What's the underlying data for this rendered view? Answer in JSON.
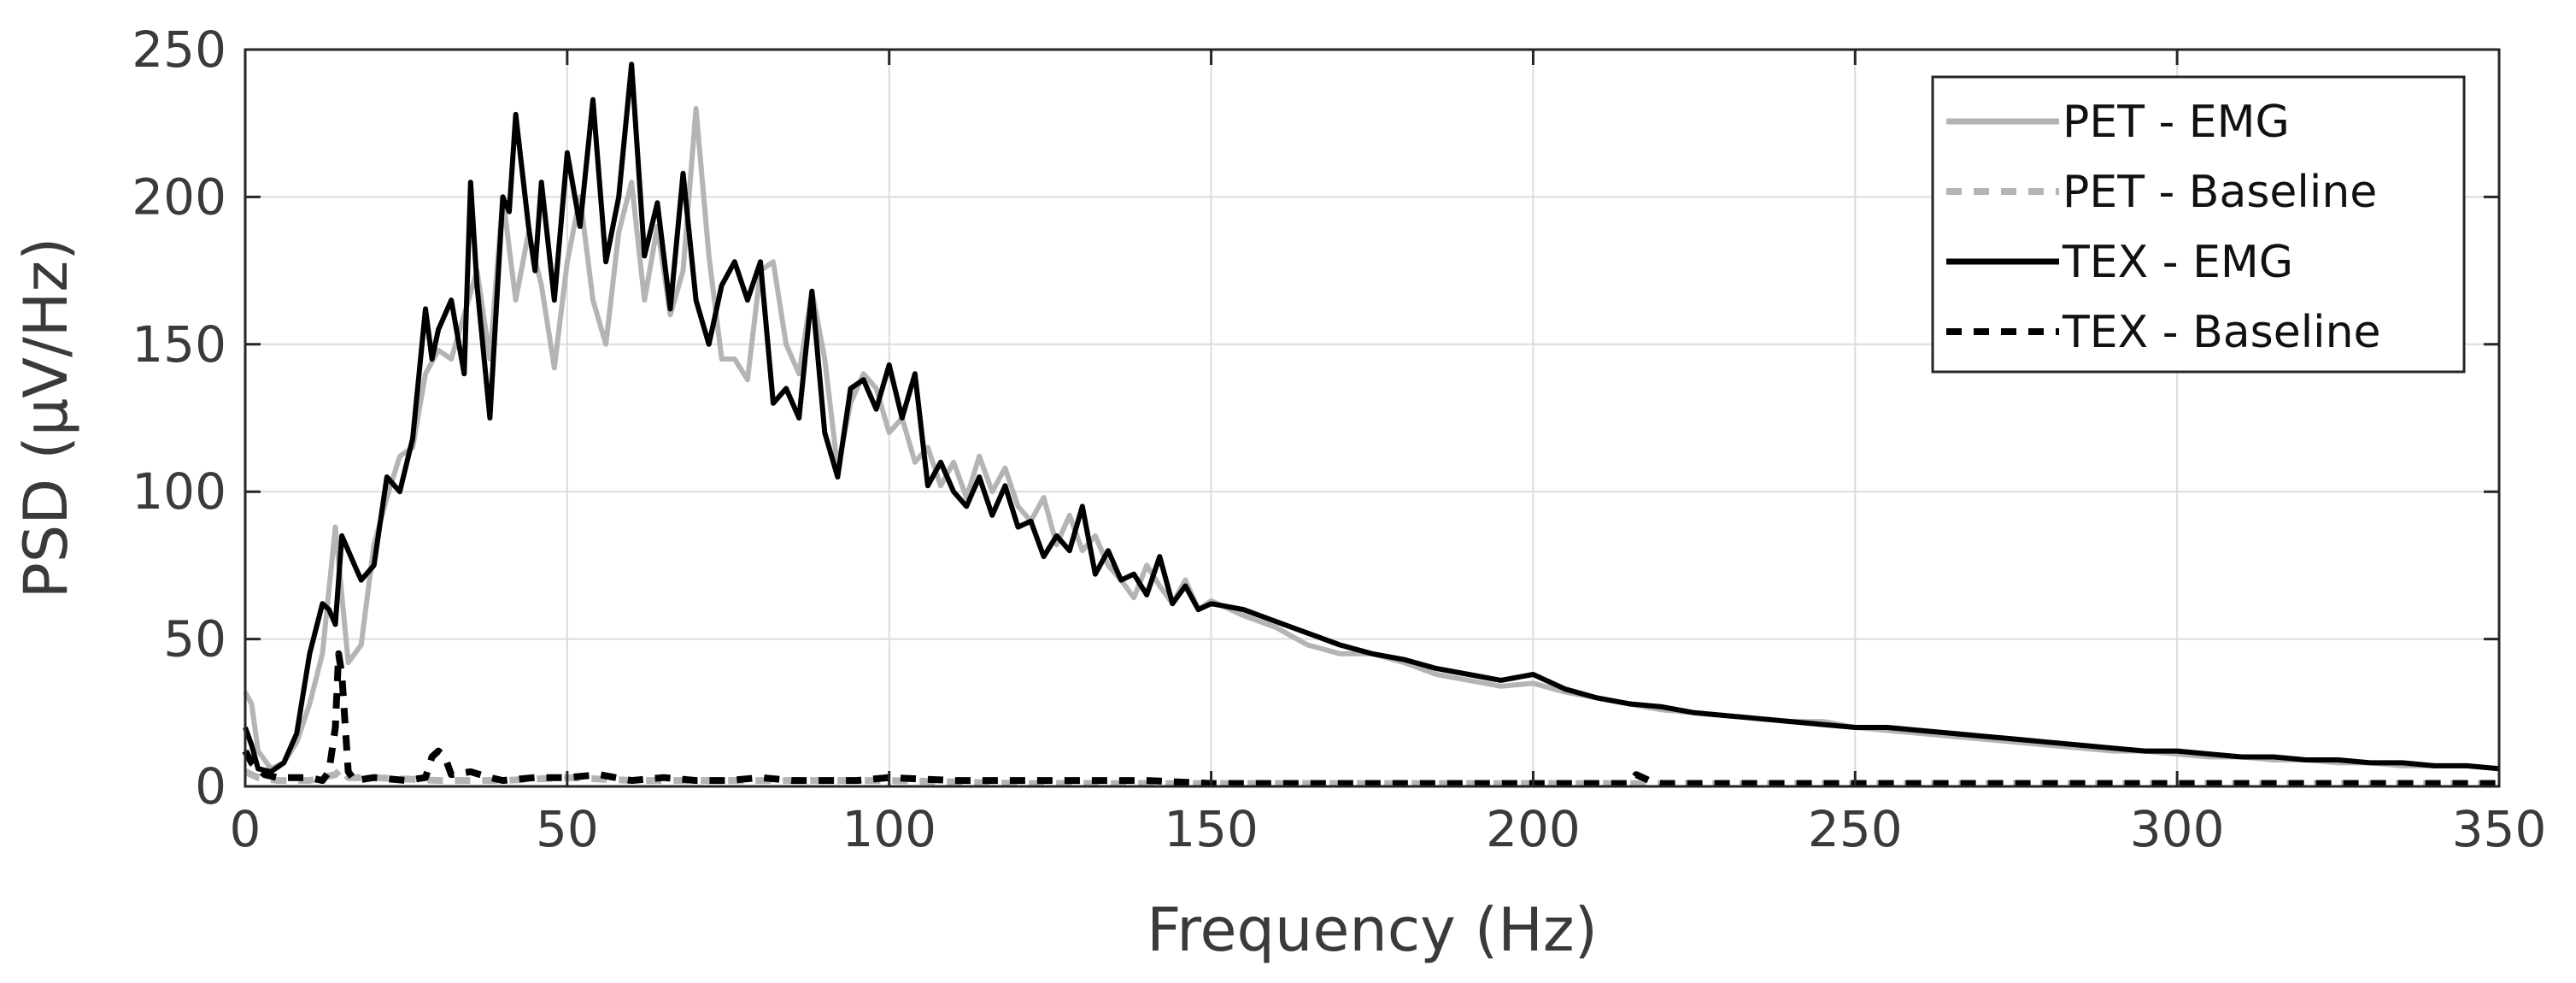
{
  "chart_data": {
    "type": "line",
    "title": "",
    "xlabel": "Frequency (Hz)",
    "ylabel": "PSD (µV/Hz)",
    "xlim": [
      0,
      350
    ],
    "ylim": [
      0,
      250
    ],
    "xticks": [
      0,
      50,
      100,
      150,
      200,
      250,
      300,
      350
    ],
    "yticks": [
      0,
      50,
      100,
      150,
      200,
      250
    ],
    "grid": true,
    "legend_position": "top-right",
    "series": [
      {
        "name": "PET - EMG",
        "color": "#b4b4b4",
        "dash": "solid",
        "x": [
          0,
          1,
          2,
          4,
          6,
          8,
          10,
          12,
          14,
          16,
          18,
          20,
          22,
          24,
          26,
          28,
          30,
          32,
          34,
          36,
          38,
          40,
          42,
          44,
          46,
          48,
          50,
          52,
          54,
          56,
          58,
          60,
          62,
          64,
          66,
          68,
          70,
          72,
          74,
          76,
          78,
          80,
          82,
          84,
          86,
          88,
          90,
          92,
          94,
          96,
          98,
          100,
          102,
          104,
          106,
          108,
          110,
          112,
          114,
          116,
          118,
          120,
          122,
          124,
          126,
          128,
          130,
          132,
          134,
          136,
          138,
          140,
          142,
          144,
          146,
          148,
          150,
          155,
          160,
          165,
          170,
          175,
          180,
          185,
          190,
          195,
          200,
          205,
          210,
          215,
          220,
          225,
          230,
          235,
          240,
          245,
          250,
          255,
          260,
          265,
          270,
          275,
          280,
          285,
          290,
          295,
          300,
          305,
          310,
          315,
          320,
          325,
          330,
          335,
          340,
          345,
          350
        ],
        "y": [
          32,
          28,
          12,
          6,
          8,
          15,
          28,
          45,
          88,
          42,
          48,
          82,
          98,
          112,
          115,
          140,
          148,
          145,
          160,
          175,
          145,
          200,
          165,
          188,
          170,
          142,
          178,
          200,
          165,
          150,
          188,
          205,
          165,
          190,
          160,
          175,
          230,
          180,
          145,
          145,
          138,
          175,
          178,
          150,
          140,
          168,
          145,
          108,
          130,
          140,
          135,
          120,
          125,
          110,
          115,
          102,
          110,
          98,
          112,
          100,
          108,
          95,
          90,
          98,
          82,
          92,
          80,
          85,
          75,
          70,
          64,
          75,
          68,
          62,
          70,
          60,
          63,
          58,
          54,
          48,
          45,
          45,
          42,
          38,
          36,
          34,
          35,
          32,
          30,
          28,
          26,
          25,
          24,
          23,
          22,
          22,
          20,
          19,
          18,
          17,
          16,
          15,
          14,
          13,
          12,
          12,
          11,
          10,
          10,
          9,
          9,
          8,
          8,
          7,
          7,
          7,
          6
        ]
      },
      {
        "name": "PET - Baseline",
        "color": "#b4b4b4",
        "dash": "dashed",
        "x": [
          0,
          2,
          5,
          10,
          14,
          15,
          16,
          20,
          30,
          40,
          50,
          60,
          70,
          80,
          90,
          100,
          120,
          140,
          160,
          180,
          200,
          250,
          300,
          350
        ],
        "y": [
          5,
          3,
          2,
          2,
          4,
          6,
          3,
          3,
          2,
          2,
          3,
          2,
          2,
          2,
          2,
          2,
          1,
          1,
          1,
          1,
          1,
          1,
          1,
          1
        ]
      },
      {
        "name": "TEX - EMG",
        "color": "#000000",
        "dash": "solid",
        "x": [
          0,
          1,
          2,
          4,
          6,
          8,
          10,
          12,
          13,
          14,
          15,
          17,
          18,
          20,
          22,
          24,
          26,
          28,
          29,
          30,
          32,
          34,
          35,
          36,
          38,
          40,
          41,
          42,
          44,
          45,
          46,
          48,
          50,
          52,
          54,
          56,
          58,
          60,
          62,
          64,
          66,
          68,
          70,
          72,
          74,
          76,
          78,
          80,
          82,
          84,
          86,
          88,
          90,
          92,
          94,
          96,
          98,
          100,
          102,
          104,
          106,
          108,
          110,
          112,
          114,
          116,
          118,
          120,
          122,
          124,
          126,
          128,
          130,
          132,
          134,
          136,
          138,
          140,
          142,
          144,
          146,
          148,
          150,
          155,
          160,
          165,
          170,
          175,
          180,
          185,
          190,
          195,
          200,
          205,
          210,
          215,
          220,
          225,
          230,
          235,
          240,
          245,
          250,
          255,
          260,
          265,
          270,
          275,
          280,
          285,
          290,
          295,
          300,
          305,
          310,
          315,
          320,
          325,
          330,
          335,
          340,
          345,
          350
        ],
        "y": [
          20,
          14,
          6,
          5,
          8,
          18,
          45,
          62,
          60,
          55,
          85,
          75,
          70,
          75,
          105,
          100,
          118,
          162,
          145,
          155,
          165,
          140,
          205,
          170,
          125,
          200,
          195,
          228,
          190,
          175,
          205,
          165,
          215,
          190,
          233,
          178,
          200,
          245,
          180,
          198,
          162,
          208,
          165,
          150,
          170,
          178,
          165,
          178,
          130,
          135,
          125,
          168,
          120,
          105,
          135,
          138,
          128,
          143,
          125,
          140,
          102,
          110,
          100,
          95,
          105,
          92,
          102,
          88,
          90,
          78,
          85,
          80,
          95,
          72,
          80,
          70,
          72,
          65,
          78,
          62,
          68,
          60,
          62,
          60,
          56,
          52,
          48,
          45,
          43,
          40,
          38,
          36,
          38,
          33,
          30,
          28,
          27,
          25,
          24,
          23,
          22,
          21,
          20,
          20,
          19,
          18,
          17,
          16,
          15,
          14,
          13,
          12,
          12,
          11,
          10,
          10,
          9,
          9,
          8,
          8,
          7,
          7,
          6
        ]
      },
      {
        "name": "TEX - Baseline",
        "color": "#000000",
        "dash": "dashed",
        "x": [
          0,
          1,
          3,
          5,
          8,
          10,
          12,
          13,
          14,
          14.5,
          15,
          16,
          17,
          20,
          25,
          28,
          29,
          30,
          31,
          32,
          35,
          38,
          40,
          45,
          50,
          55,
          60,
          65,
          70,
          75,
          80,
          85,
          90,
          95,
          100,
          110,
          120,
          130,
          140,
          150,
          160,
          170,
          180,
          190,
          200,
          210,
          215,
          216,
          218,
          220,
          230,
          250,
          280,
          300,
          320,
          350
        ],
        "y": [
          12,
          8,
          4,
          3,
          3,
          3,
          2,
          5,
          20,
          45,
          38,
          5,
          2,
          3,
          2,
          3,
          10,
          12,
          10,
          4,
          5,
          3,
          2,
          3,
          3,
          4,
          2,
          3,
          2,
          2,
          3,
          2,
          2,
          2,
          3,
          2,
          2,
          2,
          2,
          1,
          1,
          1,
          1,
          1,
          1,
          1,
          1,
          4,
          2,
          1,
          1,
          1,
          1,
          1,
          1,
          1
        ]
      }
    ]
  }
}
